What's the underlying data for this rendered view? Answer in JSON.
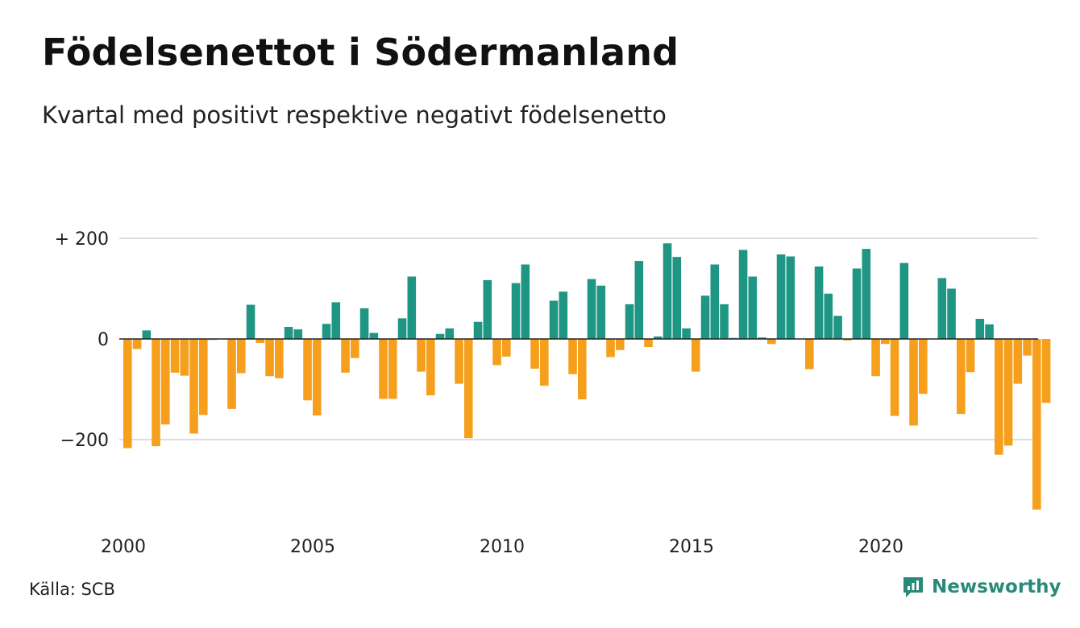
{
  "title": "Födelsenettot i Södermanland",
  "subtitle": "Kvartal med positivt respektive negativt födelsenetto",
  "source": "Källa: SCB",
  "brand": {
    "name": "Newsworthy",
    "icon": "newsworthy-logo-icon"
  },
  "colors": {
    "positive": "#1f9683",
    "negative": "#f59f1d",
    "grid": "#dddddd",
    "zero": "#222222",
    "brand": "#2a8a7a"
  },
  "chart_data": {
    "type": "bar",
    "title": "Födelsenettot i Södermanland",
    "subtitle": "Kvartal med positivt respektive negativt födelsenetto",
    "x_start": 2000,
    "periods_per_year": 4,
    "xticks": [
      "2000",
      "2005",
      "2010",
      "2015",
      "2020"
    ],
    "yticks": [
      {
        "value": 200,
        "label": "+ 200"
      },
      {
        "value": 0,
        "label": "0"
      },
      {
        "value": -200,
        "label": "−200"
      }
    ],
    "ylim": [
      -340,
      200
    ],
    "grid": true,
    "values": [
      -217,
      -20,
      17,
      -213,
      -170,
      -67,
      -73,
      -188,
      -151,
      -2,
      0,
      -139,
      -68,
      68,
      -8,
      -74,
      -78,
      24,
      19,
      -122,
      -152,
      30,
      73,
      -67,
      -38,
      61,
      12,
      -119,
      -119,
      41,
      124,
      -65,
      -112,
      10,
      21,
      -89,
      -197,
      34,
      117,
      -52,
      -35,
      111,
      148,
      -59,
      -93,
      76,
      94,
      -70,
      -120,
      119,
      106,
      -36,
      -22,
      69,
      155,
      -16,
      5,
      190,
      163,
      21,
      -65,
      86,
      148,
      69,
      2,
      177,
      124,
      3,
      -10,
      168,
      164,
      0,
      -60,
      144,
      90,
      46,
      -3,
      140,
      179,
      -74,
      -10,
      -153,
      151,
      -172,
      -109,
      0,
      121,
      100,
      -149,
      -66,
      40,
      29,
      -230,
      -212,
      -89,
      -33,
      -339,
      -127
    ]
  }
}
